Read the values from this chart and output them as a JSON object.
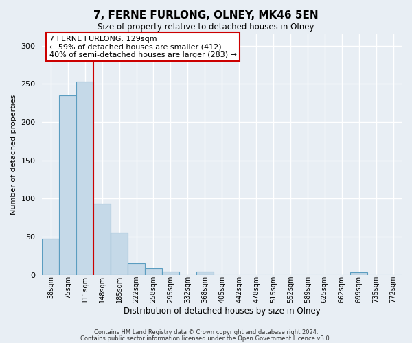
{
  "title": "7, FERNE FURLONG, OLNEY, MK46 5EN",
  "subtitle": "Size of property relative to detached houses in Olney",
  "xlabel": "Distribution of detached houses by size in Olney",
  "ylabel": "Number of detached properties",
  "bar_labels": [
    "38sqm",
    "75sqm",
    "111sqm",
    "148sqm",
    "185sqm",
    "222sqm",
    "258sqm",
    "295sqm",
    "332sqm",
    "368sqm",
    "405sqm",
    "442sqm",
    "478sqm",
    "515sqm",
    "552sqm",
    "589sqm",
    "625sqm",
    "662sqm",
    "699sqm",
    "735sqm",
    "772sqm"
  ],
  "bar_values": [
    47,
    235,
    253,
    93,
    55,
    15,
    9,
    4,
    0,
    4,
    0,
    0,
    0,
    0,
    0,
    0,
    0,
    0,
    3,
    0,
    0
  ],
  "bar_color": "#c5d9e8",
  "bar_edge_color": "#5b9dc0",
  "property_line_x": 2.5,
  "annotation_title": "7 FERNE FURLONG: 129sqm",
  "annotation_line1": "← 59% of detached houses are smaller (412)",
  "annotation_line2": "40% of semi-detached houses are larger (283) →",
  "annotation_box_color": "#ffffff",
  "annotation_box_edge": "#cc0000",
  "vline_color": "#cc0000",
  "ylim": [
    0,
    315
  ],
  "yticks": [
    0,
    50,
    100,
    150,
    200,
    250,
    300
  ],
  "bg_color": "#e8eef4",
  "grid_color": "#ffffff",
  "footer_line1": "Contains HM Land Registry data © Crown copyright and database right 2024.",
  "footer_line2": "Contains public sector information licensed under the Open Government Licence v3.0."
}
